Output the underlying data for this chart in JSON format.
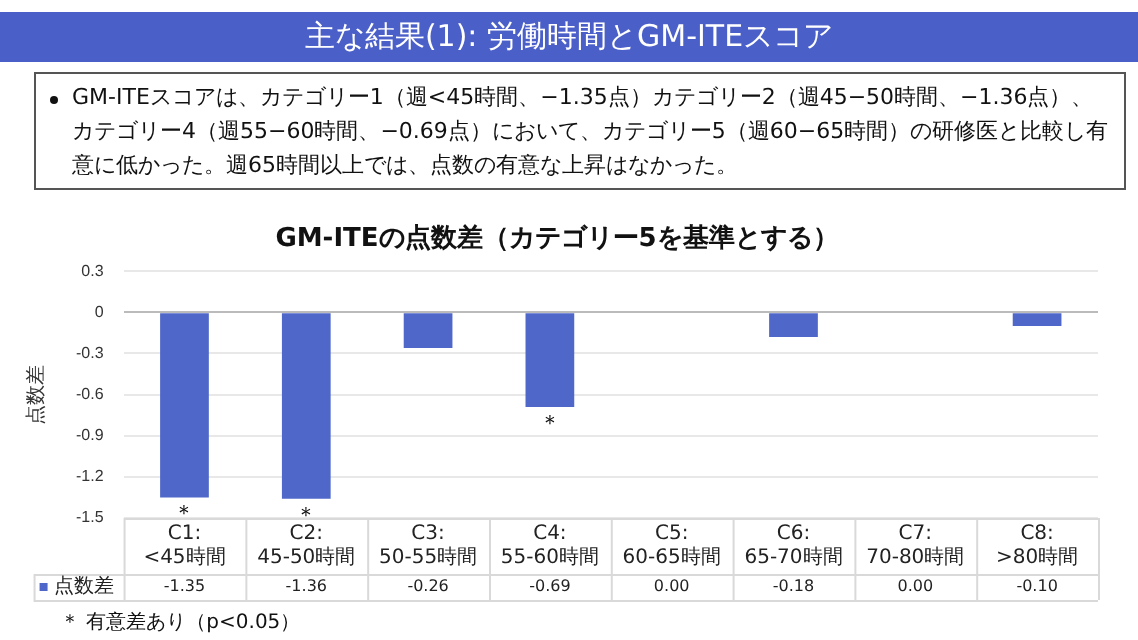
{
  "chart_data": {
    "type": "bar",
    "title": "GM-ITEの点数差（カテゴリー5を基準とする）",
    "ylabel": "点数差",
    "annotations": [
      "主な結果(1): 労働時間とGM-ITEスコア",
      "GM-ITEスコアは、カテゴリー1（週<45時間、−1.35点）カテゴリー2（週45−50時間、−1.36点）、カテゴリー4（週55−60時間、−0.69点）において、カテゴリー5（週60−65時間）の研修医と比較し有意に低かった。週65時間以上では、点数の有意な上昇はなかった。",
      {
        "text": "＊",
        "x": "C1: <45時間",
        "y": -1.35
      },
      {
        "text": "＊",
        "x": "C2: 45-50時間",
        "y": -1.36
      },
      {
        "text": "＊",
        "x": "C4: 55-60時間",
        "y": -0.69
      },
      "＊ 有意差あり（p<0.05）"
    ],
    "categories": [
      "C1: <45時間",
      "C2: 45-50時間",
      "C3: 50-55時間",
      "C4: 55-60時間",
      "C5: 60-65時間",
      "C6: 65-70時間",
      "C7: 70-80時間",
      "C8: >80時間"
    ],
    "series": [
      {
        "name": "点数差",
        "color": "#4f67c8",
        "values": [
          -1.35,
          -1.36,
          -0.26,
          -0.69,
          0,
          -0.18,
          0,
          -0.1
        ],
        "value_labels": [
          "-1.35",
          "-1.36",
          "-0.26",
          "-0.69",
          "0.00",
          "-0.18",
          "0.00",
          "-0.10"
        ]
      }
    ],
    "ylim": [
      -1.5,
      0.3
    ],
    "yticks": [
      0.3,
      0,
      -0.3,
      -0.6,
      -0.9,
      -1.2,
      -1.5
    ],
    "grid": "y",
    "legend": "bottom left"
  }
}
